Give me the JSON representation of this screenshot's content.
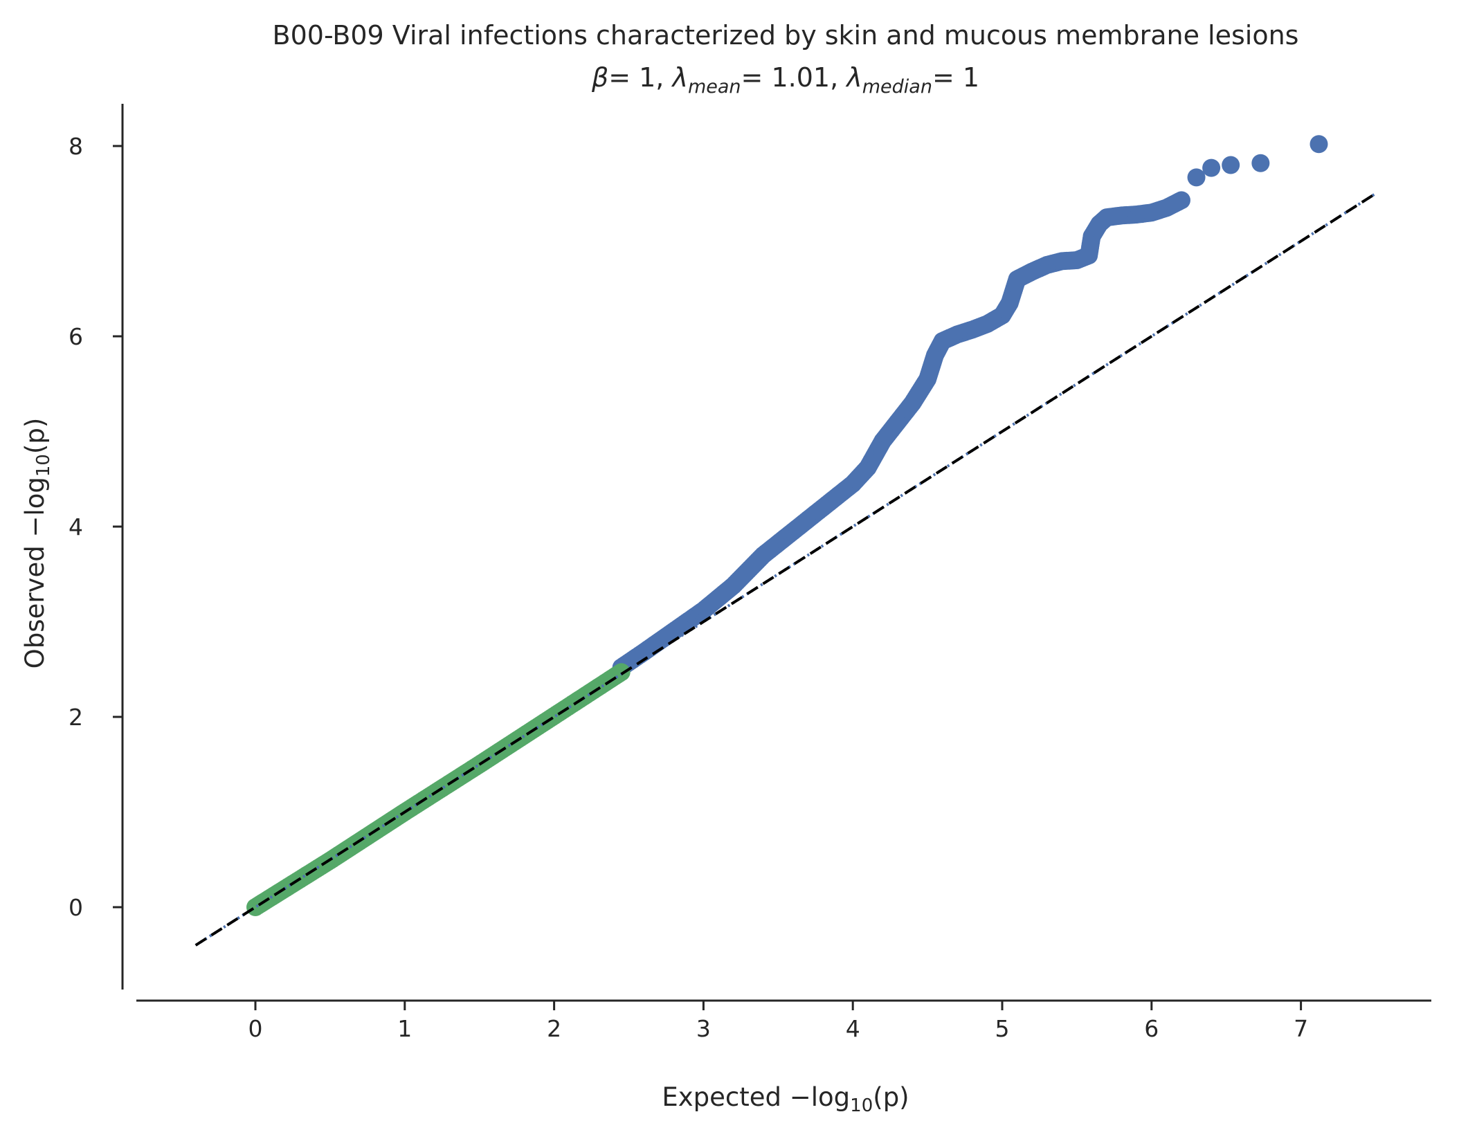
{
  "chart_data": {
    "type": "scatter",
    "title": "B00-B09 Viral infections characterized by skin and mucous membrane lesions",
    "subtitle": {
      "beta_symbol": "β",
      "beta_value": "= 1, ",
      "lambda_symbol": "λ",
      "mean_sub": "mean",
      "mean_value": "= 1.01, ",
      "median_sub": "median",
      "median_value": "= 1"
    },
    "xlabel": {
      "prefix": "Expected −log",
      "sub": "10",
      "suffix": "(p)"
    },
    "ylabel": {
      "prefix": "Observed −log",
      "sub": "10",
      "suffix": "(p)"
    },
    "xlim": [
      -0.8,
      7.85
    ],
    "ylim": [
      -0.85,
      8.5
    ],
    "xticks": [
      0,
      1,
      2,
      3,
      4,
      5,
      6,
      7
    ],
    "yticks": [
      0,
      2,
      4,
      6,
      8
    ],
    "grid": false,
    "reference_line": {
      "x": [
        -0.4,
        7.5
      ],
      "y": [
        -0.4,
        7.5
      ],
      "color": "#000000",
      "style": "dashed"
    },
    "expected_line": {
      "x": [
        -0.4,
        7.5
      ],
      "y": [
        -0.4,
        7.5
      ],
      "color": "#4c72b0",
      "style": "dotted"
    },
    "series": [
      {
        "color": "#4c72b0",
        "curve": [
          [
            2.45,
            2.52
          ],
          [
            2.6,
            2.68
          ],
          [
            2.8,
            2.9
          ],
          [
            3.0,
            3.12
          ],
          [
            3.2,
            3.38
          ],
          [
            3.4,
            3.7
          ],
          [
            3.6,
            3.95
          ],
          [
            3.8,
            4.2
          ],
          [
            4.0,
            4.45
          ],
          [
            4.1,
            4.62
          ],
          [
            4.2,
            4.9
          ],
          [
            4.3,
            5.1
          ],
          [
            4.4,
            5.3
          ],
          [
            4.5,
            5.55
          ],
          [
            4.55,
            5.8
          ],
          [
            4.6,
            5.95
          ],
          [
            4.7,
            6.02
          ],
          [
            4.8,
            6.07
          ],
          [
            4.9,
            6.13
          ],
          [
            5.0,
            6.22
          ],
          [
            5.05,
            6.35
          ],
          [
            5.1,
            6.6
          ],
          [
            5.2,
            6.68
          ],
          [
            5.3,
            6.75
          ],
          [
            5.4,
            6.79
          ],
          [
            5.5,
            6.8
          ],
          [
            5.58,
            6.85
          ],
          [
            5.6,
            7.05
          ],
          [
            5.65,
            7.18
          ],
          [
            5.7,
            7.25
          ],
          [
            5.8,
            7.27
          ],
          [
            5.9,
            7.28
          ],
          [
            6.0,
            7.3
          ],
          [
            6.1,
            7.35
          ],
          [
            6.2,
            7.43
          ]
        ],
        "points": [
          [
            6.3,
            7.67
          ],
          [
            6.4,
            7.77
          ],
          [
            6.53,
            7.8
          ],
          [
            6.73,
            7.82
          ],
          [
            7.12,
            8.02
          ]
        ]
      },
      {
        "color": "#55a868",
        "curve": [
          [
            0.0,
            0.0
          ],
          [
            0.5,
            0.49
          ],
          [
            1.0,
            1.0
          ],
          [
            1.5,
            1.5
          ],
          [
            2.0,
            2.01
          ],
          [
            2.45,
            2.47
          ]
        ]
      }
    ]
  }
}
